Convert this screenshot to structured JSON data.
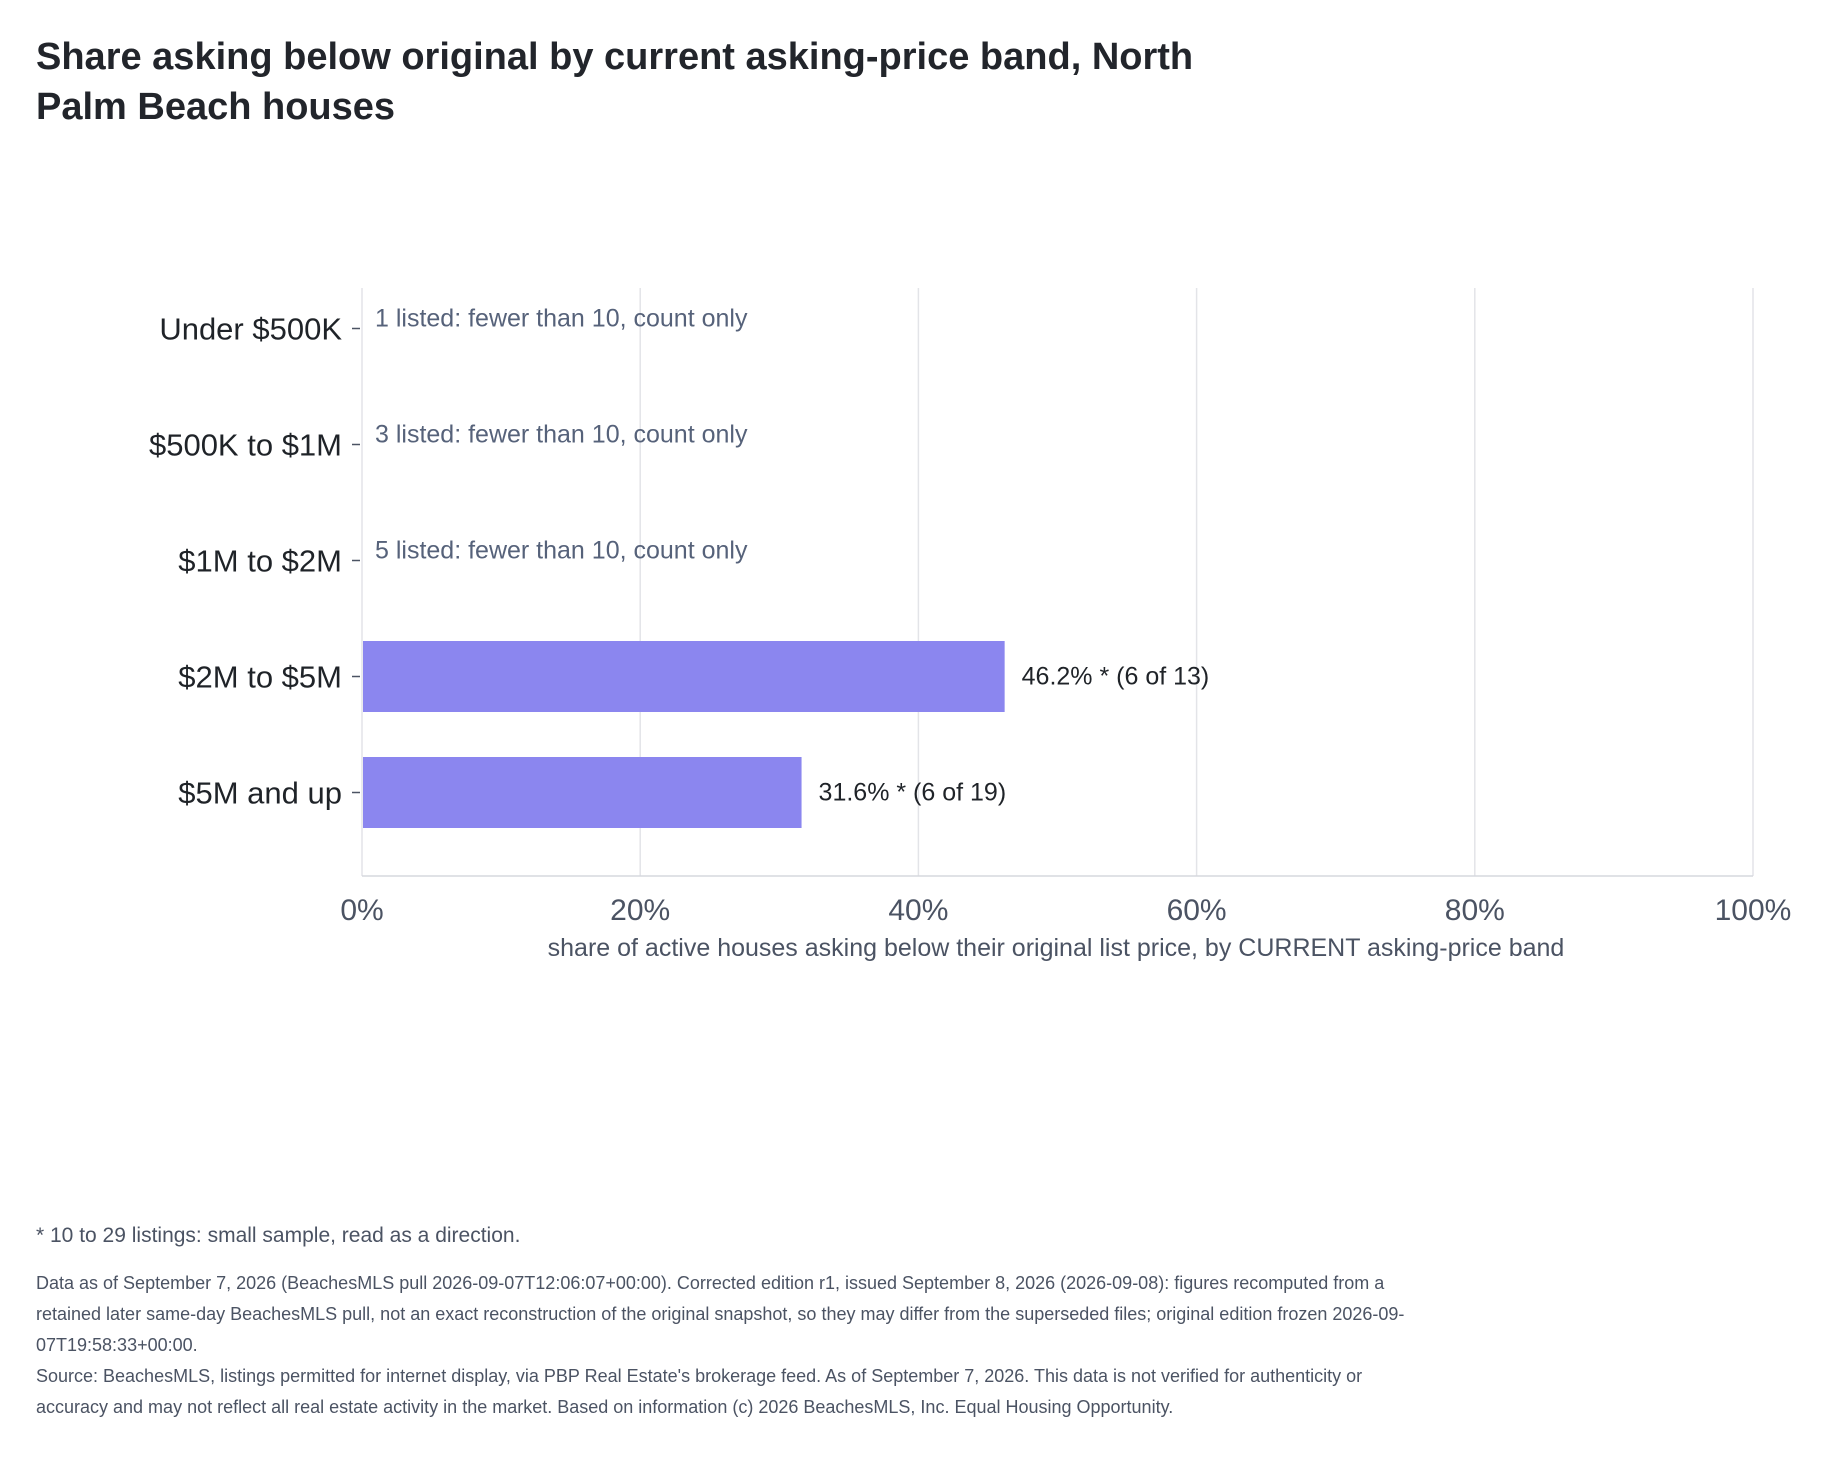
{
  "chart_data": {
    "type": "bar",
    "orientation": "horizontal",
    "title": "Share asking below original by current asking-price band, North Palm Beach houses",
    "xlabel": "share of active houses asking below their original list price, by CURRENT asking-price band",
    "ylabel": "",
    "xlim": [
      0,
      100
    ],
    "x_ticks": [
      0,
      20,
      40,
      60,
      80,
      100
    ],
    "x_tick_labels": [
      "0%",
      "20%",
      "40%",
      "60%",
      "80%",
      "100%"
    ],
    "categories": [
      "Under $500K",
      "$500K to $1M",
      "$1M to $2M",
      "$2M to $5M",
      "$5M and up"
    ],
    "values": [
      null,
      null,
      null,
      46.2,
      31.6
    ],
    "bar_labels": [
      "1 listed: fewer than 10, count only",
      "3 listed: fewer than 10, count only",
      "5 listed: fewer than 10, count only",
      "46.2% *  (6 of 13)",
      "31.6% *  (6 of 19)"
    ],
    "bar_color": "#8b86ef",
    "grid": true,
    "legend": "none"
  },
  "footnote": "* 10 to 29 listings: small sample, read as a direction.",
  "notes": {
    "data_as_of": "Data as of September 7, 2026 (BeachesMLS pull 2026-09-07T12:06:07+00:00). Corrected edition r1, issued September 8, 2026 (2026-09-08): figures recomputed from a retained later same-day BeachesMLS pull, not an exact reconstruction of the original snapshot, so they may differ from the superseded files; original edition frozen 2026-09-07T19:58:33+00:00.",
    "source": "Source: BeachesMLS, listings permitted for internet display, via PBP Real Estate's brokerage feed. As of September 7, 2026. This data is not verified for authenticity or accuracy and may not reflect all real estate activity in the market. Based on information (c) 2026 BeachesMLS, Inc. Equal Housing Opportunity."
  }
}
